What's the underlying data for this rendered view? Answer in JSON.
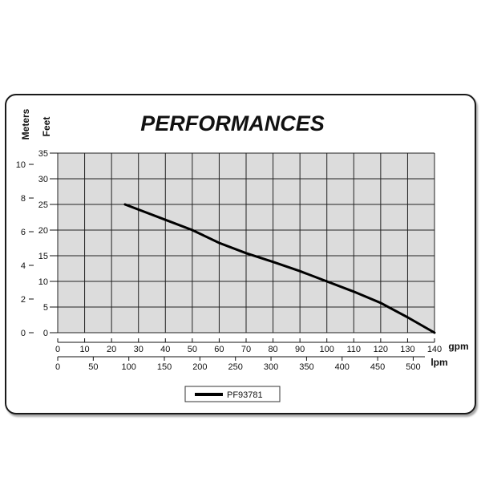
{
  "chart_data": {
    "type": "line",
    "title": "PERFORMANCES",
    "y_left_label": "Meters",
    "y_right_label": "Feet",
    "x_top_label": "gpm",
    "x_bottom_label": "lpm",
    "meters_ticks": [
      "0",
      "2",
      "4",
      "6",
      "8",
      "10"
    ],
    "feet_ticks": [
      "0",
      "5",
      "10",
      "15",
      "20",
      "25",
      "30",
      "35"
    ],
    "gpm_ticks": [
      "0",
      "10",
      "20",
      "30",
      "40",
      "50",
      "60",
      "70",
      "80",
      "90",
      "100",
      "110",
      "120",
      "130",
      "140"
    ],
    "lpm_ticks": [
      "0",
      "50",
      "100",
      "150",
      "200",
      "250",
      "300",
      "350",
      "400",
      "450",
      "500"
    ],
    "xlim": [
      0,
      140
    ],
    "ylim": [
      0,
      35
    ],
    "grid": true,
    "legend_position": "bottom-center",
    "series": [
      {
        "name": "PF93781",
        "x": [
          25,
          30,
          40,
          50,
          60,
          70,
          80,
          90,
          100,
          110,
          120,
          130,
          140
        ],
        "y": [
          25,
          24,
          22,
          20,
          17.5,
          15.5,
          13.8,
          12,
          10,
          8,
          5.8,
          3,
          0
        ],
        "color": "#000000"
      }
    ]
  },
  "colors": {
    "plot_background": "#dcdcdc",
    "grid": "#222222",
    "line": "#000000"
  }
}
